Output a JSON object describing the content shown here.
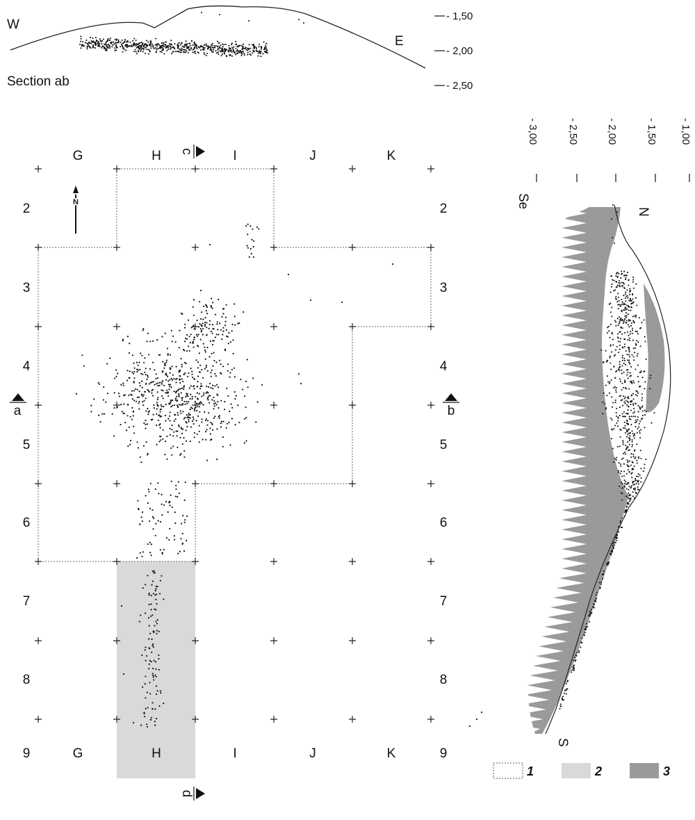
{
  "section_ab": {
    "title": "Section ab",
    "west": "W",
    "east": "E",
    "depth_labels": [
      "- 1,50",
      "- 2,00",
      "- 2,50"
    ]
  },
  "section_cd": {
    "title": "Section cd",
    "north": "N",
    "south": "S",
    "depth_labels": [
      "- 3,00",
      "- 2,50",
      "- 2,00",
      "- 1,50",
      "- 1,00"
    ]
  },
  "plan": {
    "columns": [
      "G",
      "H",
      "I",
      "J",
      "K"
    ],
    "rows": [
      "2",
      "3",
      "4",
      "5",
      "6",
      "7",
      "8",
      "9"
    ],
    "north_arrow": "N",
    "section_markers": {
      "a": "a",
      "b": "b",
      "c": "c",
      "d": "d"
    }
  },
  "legend": [
    {
      "number": "1",
      "swatch": "dotted-outline",
      "color": "#ffffff"
    },
    {
      "number": "2",
      "swatch": "light-grey",
      "color": "#d9d9d9"
    },
    {
      "number": "3",
      "swatch": "dark-grey",
      "color": "#9a9a9a"
    }
  ]
}
